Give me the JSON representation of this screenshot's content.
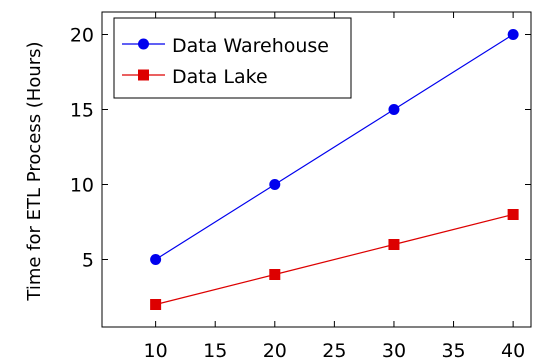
{
  "chart_data": {
    "type": "line",
    "title": "",
    "xlabel": "",
    "ylabel": "Time for ETL Process (Hours)",
    "xlim": [
      5.5,
      41.5
    ],
    "ylim": [
      0.5,
      21.5
    ],
    "xticks": [
      10,
      15,
      20,
      25,
      30,
      35,
      40
    ],
    "yticks": [
      5,
      10,
      15,
      20
    ],
    "grid": false,
    "legend_position": "top-left",
    "x": [
      10,
      20,
      30,
      40
    ],
    "series": [
      {
        "name": "Data Warehouse",
        "values": [
          5,
          10,
          15,
          20
        ],
        "color": "#0000ee",
        "marker": "circle"
      },
      {
        "name": "Data Lake",
        "values": [
          2,
          4,
          6,
          8
        ],
        "color": "#dd0000",
        "marker": "square"
      }
    ]
  }
}
